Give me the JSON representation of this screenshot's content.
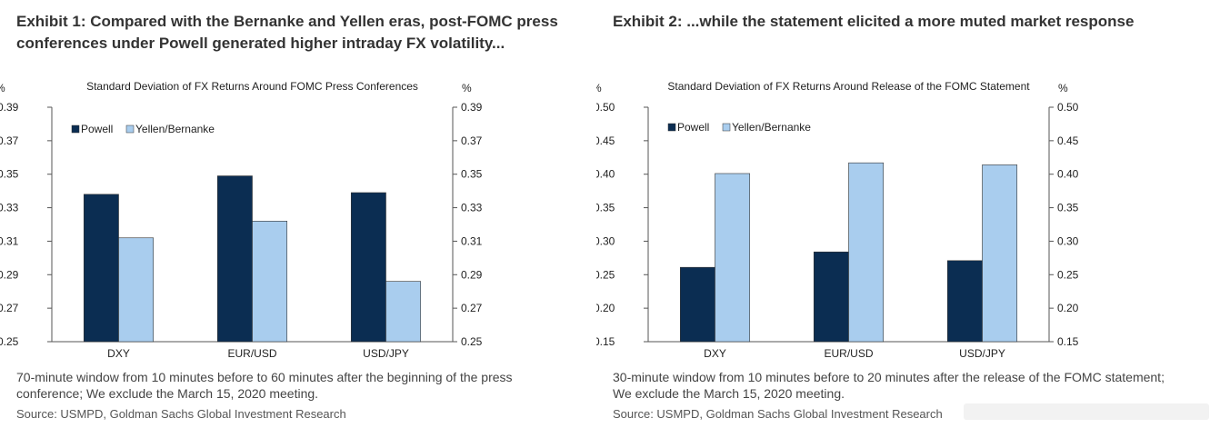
{
  "exhibits": [
    {
      "title_line1": "Exhibit 1: Compared with the Bernanke and Yellen eras, post-FOMC press",
      "title_line2": "conferences under Powell generated higher intraday FX volatility...",
      "note_line1": "70-minute window from 10 minutes before to 60 minutes after the beginning of the press",
      "note_line2": "conference; We exclude the March 15, 2020 meeting.",
      "source": "Source: USMPD, Goldman Sachs Global Investment Research"
    },
    {
      "title_line1": "Exhibit 2: ...while the statement elicited a more muted market response",
      "title_line2": "",
      "note_line1": "30-minute window from 10 minutes before to 20 minutes after the release of the FOMC statement;",
      "note_line2": "We exclude the March 15, 2020 meeting.",
      "source": "Source: USMPD, Goldman Sachs Global Investment Research"
    }
  ],
  "colors": {
    "powell": "#0b2d52",
    "yellen": "#a9cdee",
    "axis": "#555555"
  },
  "chart_data": [
    {
      "type": "bar",
      "title": "Standard Deviation of FX Returns Around FOMC Press Conferences",
      "y_unit_left": "%",
      "y_unit_right": "%",
      "categories": [
        "DXY",
        "EUR/USD",
        "USD/JPY"
      ],
      "series": [
        {
          "name": "Powell",
          "values": [
            0.338,
            0.349,
            0.339
          ]
        },
        {
          "name": "Yellen/Bernanke",
          "values": [
            0.312,
            0.322,
            0.286
          ]
        }
      ],
      "ylim": [
        0.25,
        0.39
      ],
      "yticks": [
        "0.39",
        "0.37",
        "0.35",
        "0.33",
        "0.31",
        "0.29",
        "0.27",
        "0.25"
      ],
      "grid": false,
      "legend": "top-left"
    },
    {
      "type": "bar",
      "title": "Standard Deviation of FX Returns Around Release of the FOMC Statement",
      "y_unit_left": "%",
      "y_unit_right": "%",
      "categories": [
        "DXY",
        "EUR/USD",
        "USD/JPY"
      ],
      "series": [
        {
          "name": "Powell",
          "values": [
            0.261,
            0.284,
            0.271
          ]
        },
        {
          "name": "Yellen/Bernanke",
          "values": [
            0.401,
            0.417,
            0.414
          ]
        }
      ],
      "ylim": [
        0.15,
        0.5
      ],
      "yticks": [
        "0.50",
        "0.45",
        "0.40",
        "0.35",
        "0.30",
        "0.25",
        "0.20",
        "0.15"
      ],
      "grid": false,
      "legend": "top-left"
    }
  ]
}
